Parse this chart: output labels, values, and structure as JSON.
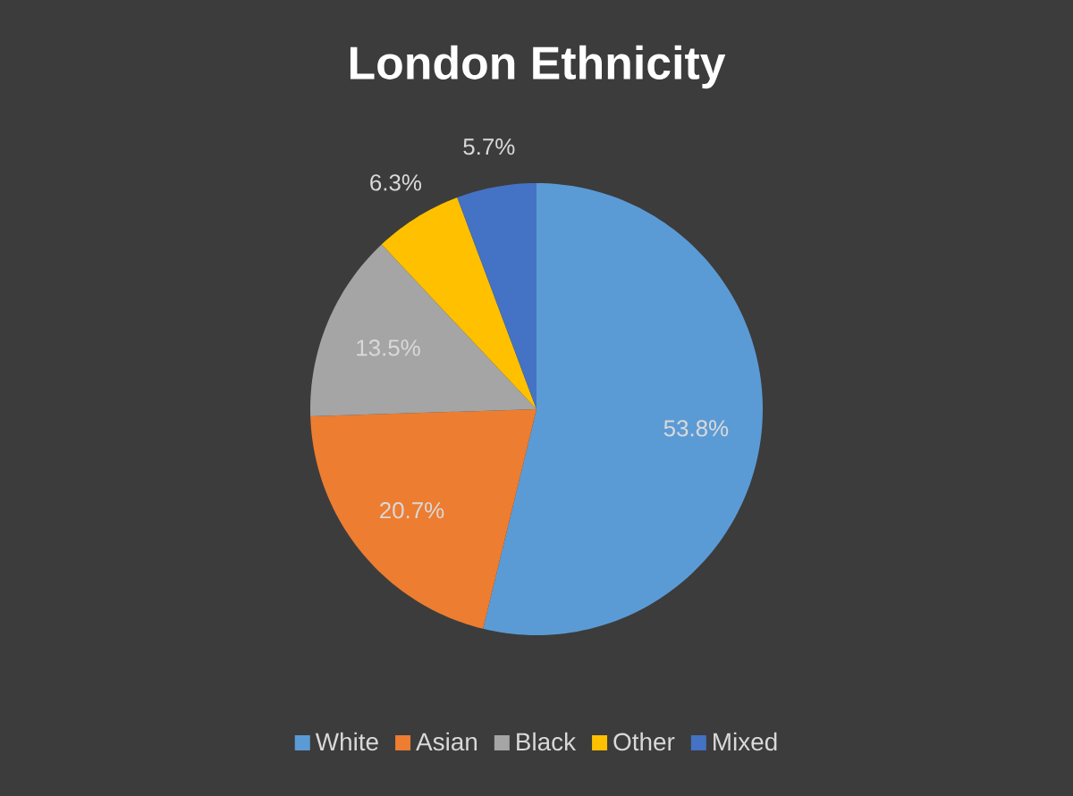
{
  "chart_data": {
    "type": "pie",
    "title": "London Ethnicity",
    "categories": [
      "White",
      "Asian",
      "Black",
      "Other",
      "Mixed"
    ],
    "values": [
      53.8,
      20.7,
      13.5,
      6.3,
      5.7
    ],
    "value_labels": [
      "53.8%",
      "20.7%",
      "13.5%",
      "6.3%",
      "5.7%"
    ],
    "colors": [
      "#5b9bd5",
      "#ed7d31",
      "#a5a5a5",
      "#ffc000",
      "#4472c4"
    ],
    "legend": "bottom"
  }
}
